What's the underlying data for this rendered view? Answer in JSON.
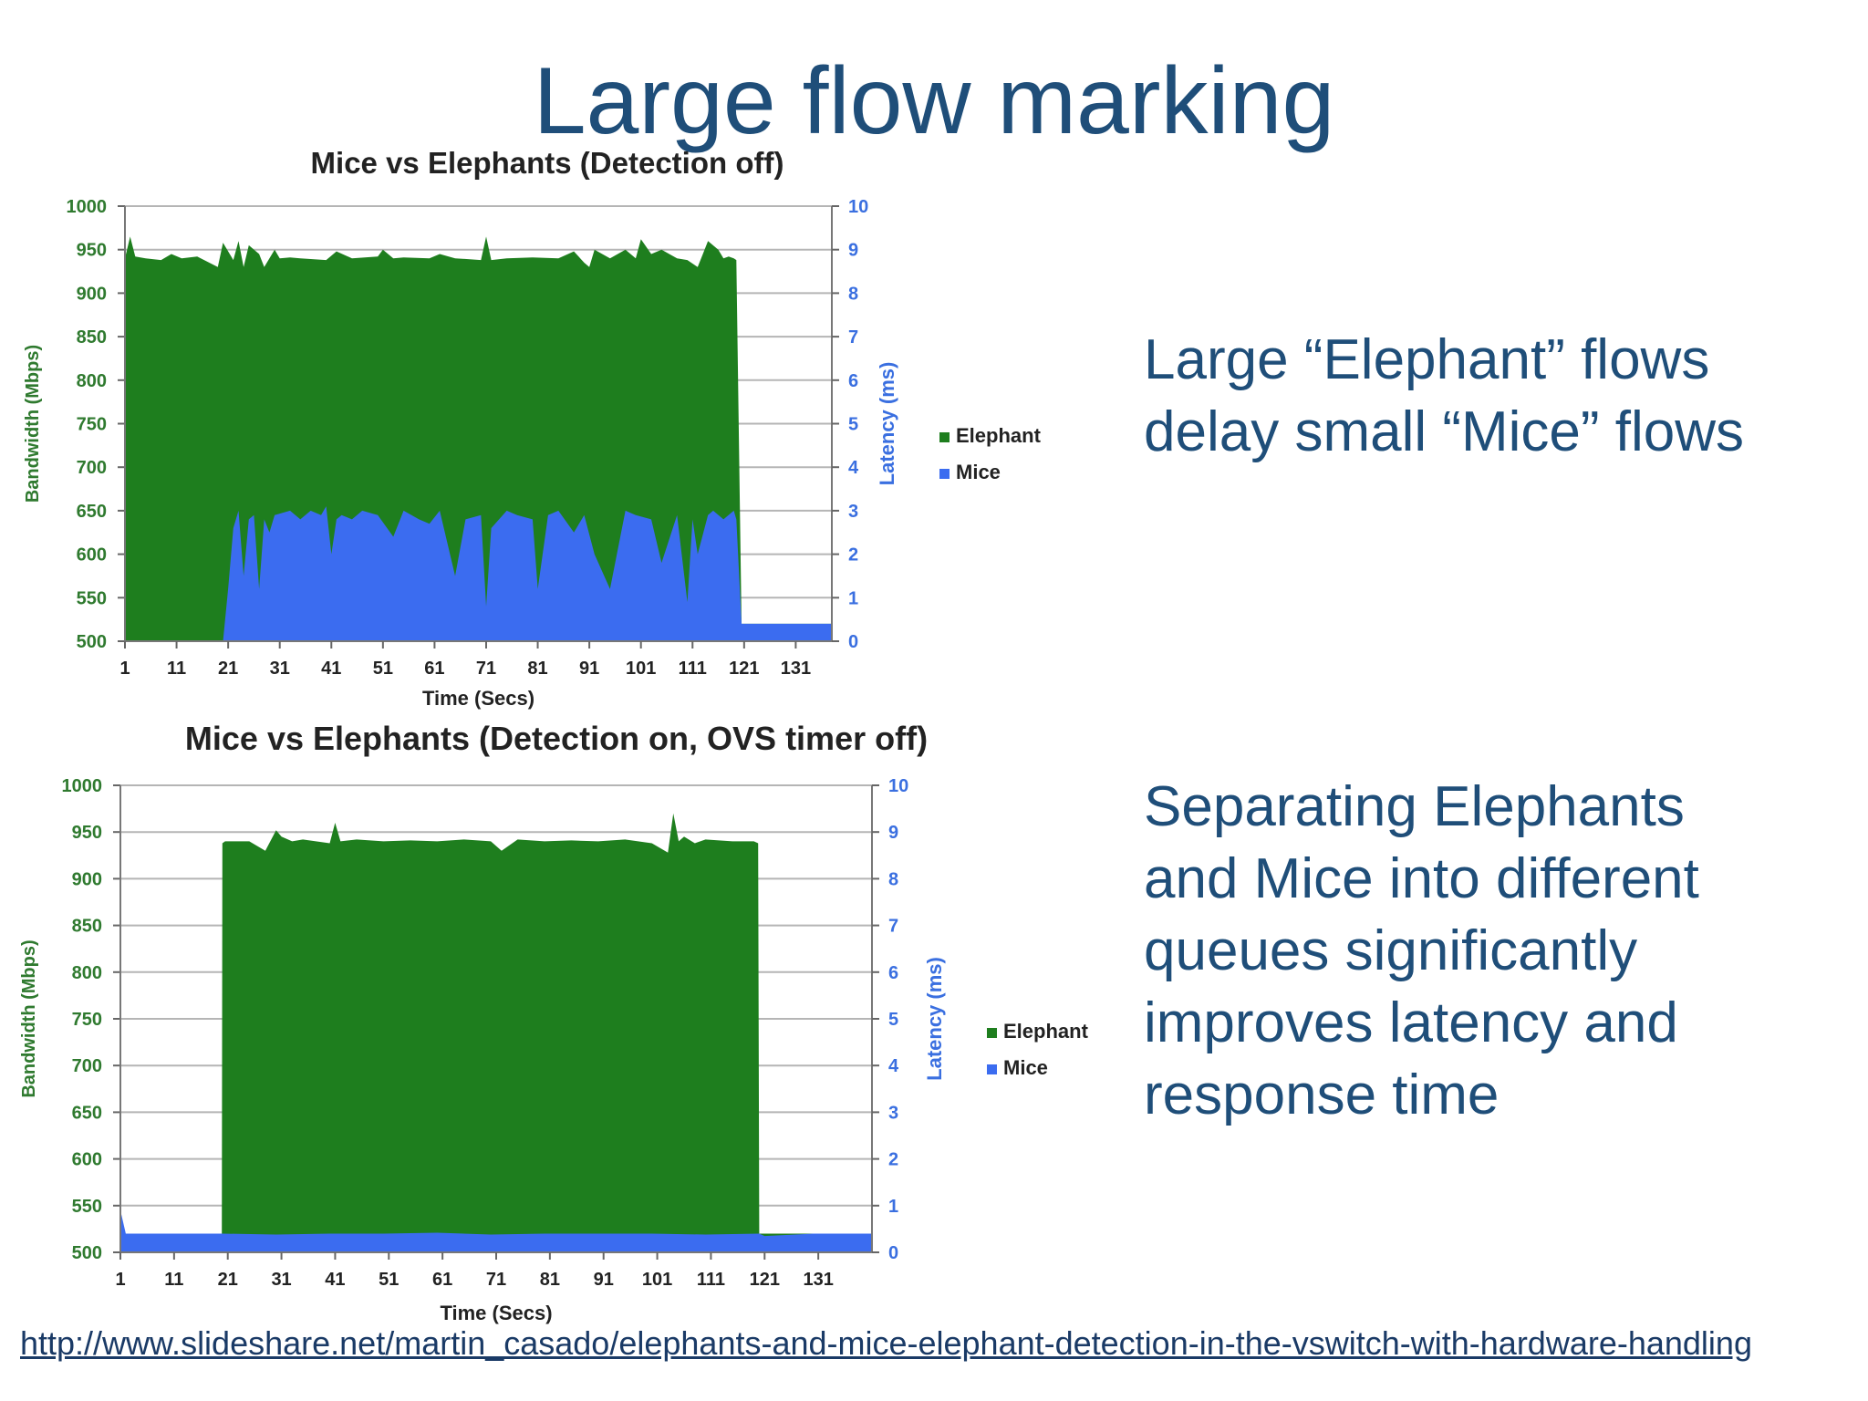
{
  "slide": {
    "title": "Large flow marking",
    "text_top": [
      "Large “Elephant” flows",
      "delay small “Mice” flows"
    ],
    "text_bottom": [
      "Separating Elephants",
      "and Mice into different",
      "queues significantly",
      "improves latency and",
      "response time"
    ],
    "source_link": "http://www.slideshare.net/martin_casado/elephants-and-mice-elephant-detection-in-the-vswitch-with-hardware-handling"
  },
  "colors": {
    "elephant": "#1e7e1e",
    "mice": "#3b6cf0",
    "title_blue": "#1f4e79"
  },
  "chart_data": [
    {
      "type": "area",
      "title": "Mice vs Elephants (Detection off)",
      "xlabel": "Time (Secs)",
      "ylabel": "Bandwidth (Mbps)",
      "y2label": "Latency (ms)",
      "xlim": [
        1,
        138
      ],
      "ylim": [
        500,
        1000
      ],
      "y2lim": [
        0,
        10
      ],
      "x_ticks": [
        1,
        11,
        21,
        31,
        41,
        51,
        61,
        71,
        81,
        91,
        101,
        111,
        121,
        131
      ],
      "y_ticks": [
        1000,
        950,
        900,
        850,
        800,
        750,
        700,
        650,
        600,
        550,
        500
      ],
      "y2_ticks": [
        10,
        9,
        8,
        7,
        6,
        5,
        4,
        3,
        2,
        1,
        0
      ],
      "grid": true,
      "legend_position": "right",
      "series": [
        {
          "name": "Elephant",
          "axis": "left",
          "x": [
            1,
            2,
            3,
            5,
            8,
            10,
            12,
            15,
            19,
            20,
            22,
            23,
            24,
            25,
            27,
            28,
            30,
            31,
            33,
            35,
            40,
            42,
            45,
            50,
            51,
            53,
            55,
            60,
            62,
            65,
            70,
            71,
            72,
            75,
            80,
            85,
            88,
            90,
            91,
            92,
            95,
            98,
            100,
            101,
            103,
            105,
            108,
            110,
            112,
            113,
            114,
            116,
            117,
            118,
            119,
            119.5,
            120.5,
            121,
            138
          ],
          "values": [
            940,
            965,
            942,
            940,
            938,
            945,
            940,
            942,
            930,
            958,
            938,
            960,
            930,
            955,
            945,
            930,
            950,
            940,
            941,
            940,
            938,
            948,
            940,
            942,
            950,
            940,
            941,
            940,
            945,
            940,
            938,
            965,
            938,
            940,
            941,
            940,
            948,
            935,
            930,
            950,
            940,
            950,
            940,
            962,
            945,
            950,
            940,
            938,
            930,
            945,
            960,
            950,
            940,
            942,
            940,
            938,
            520,
            520,
            520
          ]
        },
        {
          "name": "Mice",
          "axis": "right",
          "x": [
            1,
            19,
            20,
            21,
            22,
            23,
            24,
            25,
            26,
            27,
            28,
            29,
            30,
            33,
            35,
            37,
            39,
            40,
            41,
            42,
            43,
            45,
            47,
            50,
            53,
            55,
            58,
            60,
            62,
            65,
            67,
            70,
            71,
            72,
            75,
            77,
            80,
            81,
            83,
            85,
            88,
            90,
            92,
            95,
            98,
            100,
            103,
            105,
            108,
            110,
            111,
            112,
            114,
            115,
            117,
            119,
            119.5,
            120.5,
            121,
            138
          ],
          "values": [
            0,
            0,
            0,
            1.2,
            2.6,
            3.0,
            1.5,
            2.8,
            2.9,
            1.2,
            2.8,
            2.5,
            2.9,
            3.0,
            2.8,
            3.0,
            2.9,
            3.1,
            2.0,
            2.8,
            2.9,
            2.8,
            3.0,
            2.9,
            2.4,
            3.0,
            2.8,
            2.7,
            3.0,
            1.5,
            2.8,
            2.9,
            0.8,
            2.6,
            3.0,
            2.9,
            2.8,
            1.2,
            2.9,
            3.0,
            2.5,
            2.9,
            2.0,
            1.2,
            3.0,
            2.9,
            2.8,
            1.8,
            2.9,
            0.9,
            2.8,
            2.0,
            2.9,
            3.0,
            2.8,
            3.0,
            2.8,
            0.4,
            0.4,
            0.4
          ]
        }
      ]
    },
    {
      "type": "area",
      "title": "Mice vs Elephants (Detection on, OVS timer off)",
      "xlabel": "Time (Secs)",
      "ylabel": "Bandwidth (Mbps)",
      "y2label": "Latency (ms)",
      "xlim": [
        1,
        141
      ],
      "ylim": [
        500,
        1000
      ],
      "y2lim": [
        0,
        10
      ],
      "x_ticks": [
        1,
        11,
        21,
        31,
        41,
        51,
        61,
        71,
        81,
        91,
        101,
        111,
        121,
        131
      ],
      "y_ticks": [
        1000,
        950,
        900,
        850,
        800,
        750,
        700,
        650,
        600,
        550,
        500
      ],
      "y2_ticks": [
        10,
        9,
        8,
        7,
        6,
        5,
        4,
        3,
        2,
        1,
        0
      ],
      "grid": true,
      "legend_position": "right",
      "series": [
        {
          "name": "Elephant",
          "axis": "left",
          "x": [
            1,
            19.9,
            20,
            20.5,
            25,
            28,
            30,
            31,
            33,
            35,
            40,
            41,
            42,
            45,
            50,
            55,
            60,
            65,
            70,
            72,
            75,
            80,
            85,
            90,
            95,
            100,
            103,
            104,
            105,
            106,
            108,
            110,
            115,
            119,
            119.8,
            120,
            141
          ],
          "values": [
            520,
            520,
            938,
            940,
            940,
            930,
            952,
            945,
            940,
            942,
            938,
            960,
            940,
            942,
            940,
            941,
            940,
            942,
            940,
            930,
            942,
            940,
            941,
            940,
            942,
            938,
            928,
            970,
            940,
            945,
            938,
            942,
            940,
            940,
            938,
            520,
            520
          ]
        },
        {
          "name": "Mice",
          "axis": "right",
          "x": [
            1,
            2,
            3,
            10,
            20,
            30,
            40,
            50,
            60,
            70,
            80,
            90,
            100,
            110,
            120,
            121,
            130,
            141
          ],
          "values": [
            0.9,
            0.4,
            0.4,
            0.4,
            0.4,
            0.38,
            0.4,
            0.4,
            0.42,
            0.38,
            0.4,
            0.4,
            0.4,
            0.38,
            0.4,
            0.35,
            0.4,
            0.4
          ]
        }
      ]
    }
  ]
}
